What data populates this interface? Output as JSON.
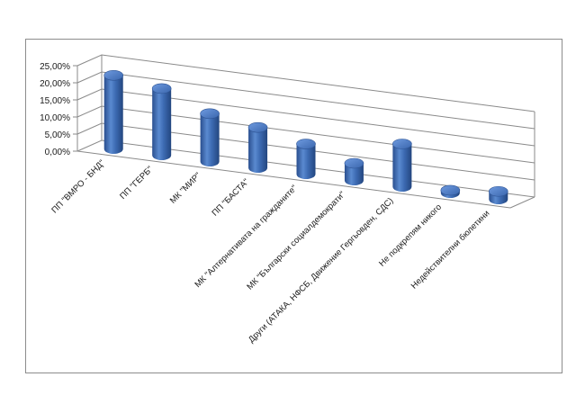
{
  "chart_data": {
    "type": "bar",
    "style": "3d-cylinder",
    "title": "",
    "xlabel": "",
    "ylabel": "",
    "ylim": [
      0,
      25
    ],
    "y_tick_values": [
      0,
      5,
      10,
      15,
      20,
      25
    ],
    "y_tick_labels": [
      "0,00%",
      "5,00%",
      "10,00%",
      "15,00%",
      "20,00%",
      "25,00%"
    ],
    "grid": true,
    "legend": "none",
    "bar_color": "#3d6bb3",
    "categories": [
      "ПП \"ВМРО - БНД\"",
      "ПП \"ГЕРБ\"",
      "МК \"МИР\"",
      "ПП \"БАСТА\"",
      "МК \"Алтернативата на гражданите\"",
      "МК \"Български социалдемократи\"",
      "Други (АТАКА, НФСБ, Движение Гергьовден, СДС)",
      "Не подкрепям никого",
      "Недействителни бюлетини"
    ],
    "values": [
      21.5,
      19.5,
      14.0,
      11.8,
      8.8,
      5.0,
      12.5,
      0.8,
      2.3
    ]
  }
}
